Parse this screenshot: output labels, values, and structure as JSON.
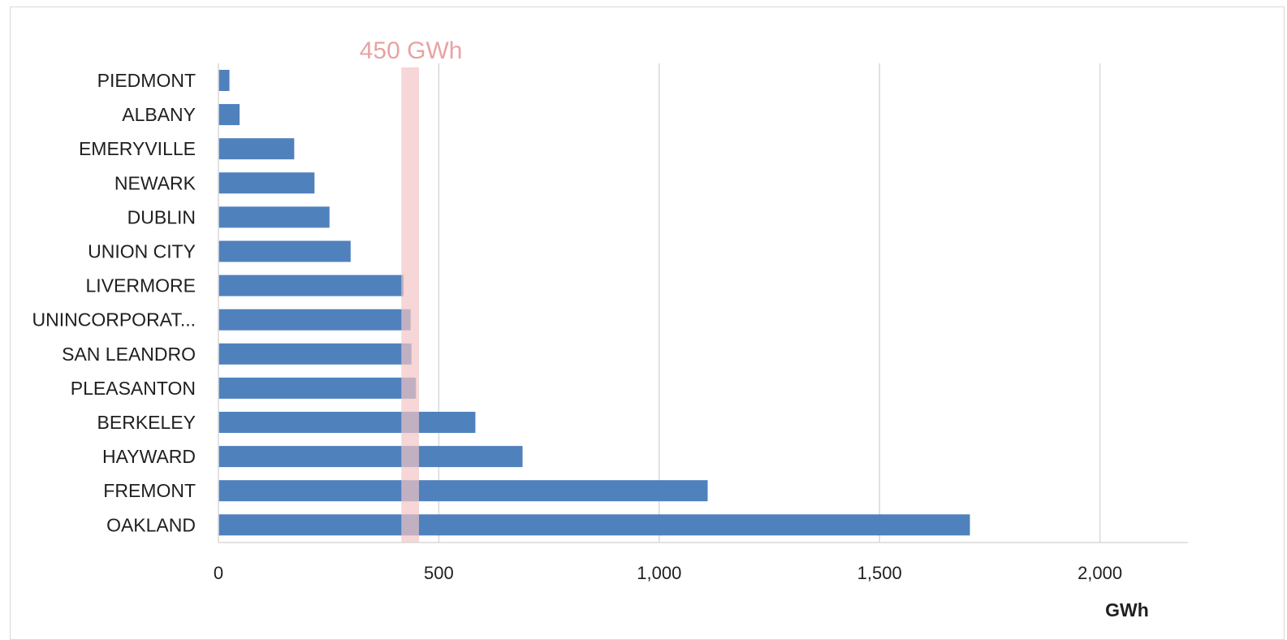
{
  "chart_data": {
    "type": "bar",
    "orientation": "horizontal",
    "categories": [
      "PIEDMONT",
      "ALBANY",
      "EMERYVILLE",
      "NEWARK",
      "DUBLIN",
      "UNION CITY",
      "LIVERMORE",
      "UNINCORPORAT...",
      "SAN LEANDRO",
      "PLEASANTON",
      "BERKELEY",
      "HAYWARD",
      "FREMONT",
      "OAKLAND"
    ],
    "values": [
      25,
      48,
      172,
      218,
      252,
      300,
      420,
      436,
      438,
      448,
      583,
      690,
      1110,
      1705
    ],
    "xlabel": "GWh",
    "xlim": [
      0,
      2200
    ],
    "xticks": [
      0,
      500,
      1000,
      1500,
      2000
    ],
    "xtick_labels": [
      "0",
      "500",
      "1,000",
      "1,500",
      "2,000"
    ],
    "grid": "vertical",
    "bar_color": "#4f81bd",
    "reference_band": {
      "label": "450 GWh",
      "from": 415,
      "to": 455,
      "color": "#f2c4c4"
    }
  }
}
